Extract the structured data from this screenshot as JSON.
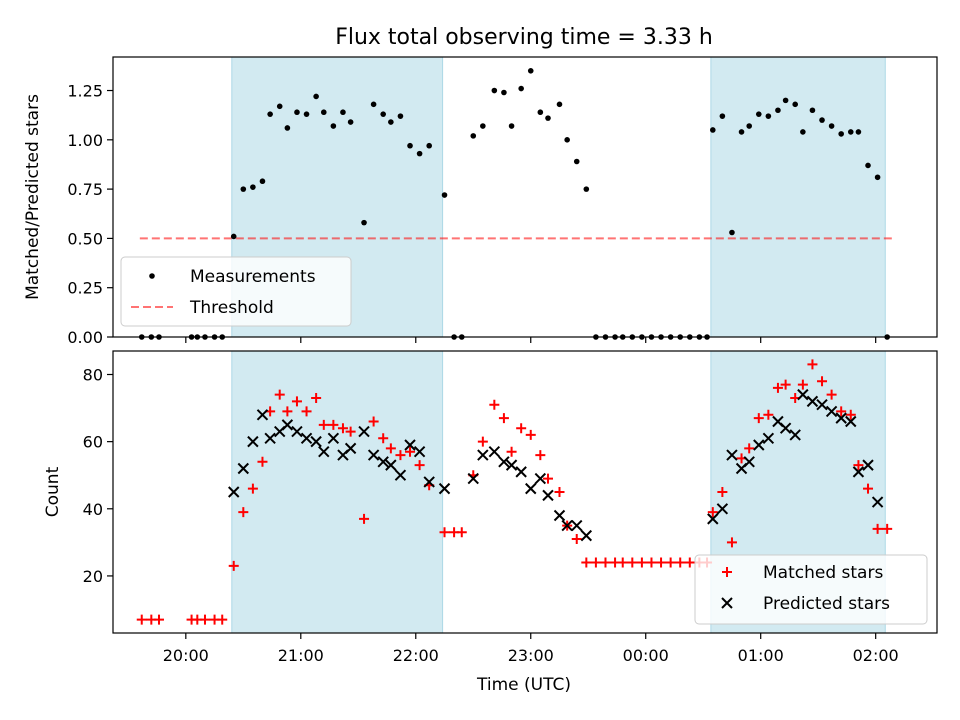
{
  "title": "Flux total observing time = 3.33 h",
  "colors": {
    "shade": "#add8e6",
    "threshold": "#ff0000",
    "matched": "#ff0000",
    "predicted": "#000000",
    "measurement": "#000000"
  },
  "chart_data": [
    {
      "type": "scatter",
      "title": "Flux total observing time = 3.33 h",
      "ylabel": "Matched/Predicted stars",
      "xlabel": "",
      "xlim": [
        "19:22",
        "02:32"
      ],
      "ylim": [
        0,
        1.42
      ],
      "yticks": [
        0.0,
        0.25,
        0.5,
        0.75,
        1.0,
        1.25
      ],
      "ytick_labels": [
        "0.00",
        "0.25",
        "0.50",
        "0.75",
        "1.00",
        "1.25"
      ],
      "shaded_intervals": [
        [
          "20:24",
          "22:14"
        ],
        [
          "00:34",
          "02:05"
        ]
      ],
      "legend": {
        "position": "lower-left",
        "entries": [
          "Measurements",
          "Threshold"
        ]
      },
      "threshold": {
        "name": "Threshold",
        "value": 0.5,
        "x_range": [
          "19:36",
          "02:10"
        ]
      },
      "series": [
        {
          "name": "Measurements",
          "points": [
            [
              "19:37",
              0
            ],
            [
              "19:42",
              0
            ],
            [
              "19:46",
              0
            ],
            [
              "20:03",
              0
            ],
            [
              "20:06",
              0
            ],
            [
              "20:10",
              0
            ],
            [
              "20:15",
              0
            ],
            [
              "20:19",
              0
            ],
            [
              "20:25",
              0.51
            ],
            [
              "20:30",
              0.75
            ],
            [
              "20:35",
              0.76
            ],
            [
              "20:40",
              0.79
            ],
            [
              "20:44",
              1.13
            ],
            [
              "20:49",
              1.17
            ],
            [
              "20:53",
              1.06
            ],
            [
              "20:58",
              1.14
            ],
            [
              "21:03",
              1.13
            ],
            [
              "21:08",
              1.22
            ],
            [
              "21:12",
              1.14
            ],
            [
              "21:17",
              1.07
            ],
            [
              "21:22",
              1.14
            ],
            [
              "21:26",
              1.09
            ],
            [
              "21:33",
              0.58
            ],
            [
              "21:38",
              1.18
            ],
            [
              "21:43",
              1.13
            ],
            [
              "21:47",
              1.09
            ],
            [
              "21:52",
              1.12
            ],
            [
              "21:57",
              0.97
            ],
            [
              "22:02",
              0.93
            ],
            [
              "22:07",
              0.97
            ],
            [
              "22:15",
              0.72
            ],
            [
              "22:20",
              0
            ],
            [
              "22:24",
              0
            ],
            [
              "22:30",
              1.02
            ],
            [
              "22:35",
              1.07
            ],
            [
              "22:41",
              1.25
            ],
            [
              "22:46",
              1.24
            ],
            [
              "22:50",
              1.07
            ],
            [
              "22:55",
              1.26
            ],
            [
              "23:00",
              1.35
            ],
            [
              "23:05",
              1.14
            ],
            [
              "23:09",
              1.11
            ],
            [
              "23:15",
              1.18
            ],
            [
              "23:19",
              1.0
            ],
            [
              "23:24",
              0.89
            ],
            [
              "23:29",
              0.75
            ],
            [
              "23:34",
              0
            ],
            [
              "23:39",
              0
            ],
            [
              "23:44",
              0
            ],
            [
              "23:48",
              0
            ],
            [
              "23:53",
              0
            ],
            [
              "23:58",
              0
            ],
            [
              "00:03",
              0
            ],
            [
              "00:08",
              0
            ],
            [
              "00:13",
              0
            ],
            [
              "00:18",
              0
            ],
            [
              "00:23",
              0
            ],
            [
              "00:28",
              0
            ],
            [
              "00:32",
              0
            ],
            [
              "00:35",
              1.05
            ],
            [
              "00:40",
              1.12
            ],
            [
              "00:45",
              0.53
            ],
            [
              "00:50",
              1.04
            ],
            [
              "00:54",
              1.07
            ],
            [
              "00:59",
              1.13
            ],
            [
              "01:04",
              1.12
            ],
            [
              "01:09",
              1.15
            ],
            [
              "01:13",
              1.2
            ],
            [
              "01:18",
              1.18
            ],
            [
              "01:22",
              1.04
            ],
            [
              "01:27",
              1.15
            ],
            [
              "01:32",
              1.1
            ],
            [
              "01:37",
              1.07
            ],
            [
              "01:42",
              1.03
            ],
            [
              "01:47",
              1.04
            ],
            [
              "01:51",
              1.04
            ],
            [
              "01:56",
              0.87
            ],
            [
              "02:01",
              0.81
            ],
            [
              "02:06",
              0
            ]
          ]
        }
      ]
    },
    {
      "type": "scatter",
      "title": "",
      "ylabel": "Count",
      "xlabel": "Time (UTC)",
      "xlim": [
        "19:22",
        "02:32"
      ],
      "ylim": [
        3,
        87
      ],
      "yticks": [
        20,
        40,
        60,
        80
      ],
      "ytick_labels": [
        "20",
        "40",
        "60",
        "80"
      ],
      "xtick_labels": [
        "20:00",
        "21:00",
        "22:00",
        "23:00",
        "00:00",
        "01:00",
        "02:00"
      ],
      "shaded_intervals": [
        [
          "20:24",
          "22:14"
        ],
        [
          "00:34",
          "02:05"
        ]
      ],
      "legend": {
        "position": "lower-right",
        "entries": [
          "Matched stars",
          "Predicted stars"
        ]
      },
      "series": [
        {
          "name": "Matched stars",
          "marker": "plus",
          "points": [
            [
              "19:37",
              7
            ],
            [
              "19:42",
              7
            ],
            [
              "19:46",
              7
            ],
            [
              "20:03",
              7
            ],
            [
              "20:06",
              7
            ],
            [
              "20:10",
              7
            ],
            [
              "20:15",
              7
            ],
            [
              "20:19",
              7
            ],
            [
              "20:25",
              23
            ],
            [
              "20:30",
              39
            ],
            [
              "20:35",
              46
            ],
            [
              "20:40",
              54
            ],
            [
              "20:44",
              69
            ],
            [
              "20:49",
              74
            ],
            [
              "20:53",
              69
            ],
            [
              "20:58",
              72
            ],
            [
              "21:03",
              69
            ],
            [
              "21:08",
              73
            ],
            [
              "21:12",
              65
            ],
            [
              "21:17",
              65
            ],
            [
              "21:22",
              64
            ],
            [
              "21:26",
              63
            ],
            [
              "21:33",
              37
            ],
            [
              "21:38",
              66
            ],
            [
              "21:43",
              61
            ],
            [
              "21:47",
              58
            ],
            [
              "21:52",
              56
            ],
            [
              "21:57",
              57
            ],
            [
              "22:02",
              53
            ],
            [
              "22:07",
              47
            ],
            [
              "22:15",
              33
            ],
            [
              "22:20",
              33
            ],
            [
              "22:24",
              33
            ],
            [
              "22:30",
              50
            ],
            [
              "22:35",
              60
            ],
            [
              "22:41",
              71
            ],
            [
              "22:46",
              67
            ],
            [
              "22:50",
              57
            ],
            [
              "22:55",
              64
            ],
            [
              "23:00",
              62
            ],
            [
              "23:05",
              56
            ],
            [
              "23:09",
              49
            ],
            [
              "23:15",
              45
            ],
            [
              "23:19",
              35
            ],
            [
              "23:24",
              31
            ],
            [
              "23:29",
              24
            ],
            [
              "23:34",
              24
            ],
            [
              "23:39",
              24
            ],
            [
              "23:44",
              24
            ],
            [
              "23:48",
              24
            ],
            [
              "23:53",
              24
            ],
            [
              "23:58",
              24
            ],
            [
              "00:03",
              24
            ],
            [
              "00:08",
              24
            ],
            [
              "00:13",
              24
            ],
            [
              "00:18",
              24
            ],
            [
              "00:23",
              24
            ],
            [
              "00:28",
              24
            ],
            [
              "00:32",
              24
            ],
            [
              "00:35",
              39
            ],
            [
              "00:40",
              45
            ],
            [
              "00:45",
              30
            ],
            [
              "00:50",
              55
            ],
            [
              "00:54",
              58
            ],
            [
              "00:59",
              67
            ],
            [
              "01:04",
              68
            ],
            [
              "01:09",
              76
            ],
            [
              "01:13",
              77
            ],
            [
              "01:18",
              73
            ],
            [
              "01:22",
              77
            ],
            [
              "01:27",
              83
            ],
            [
              "01:32",
              78
            ],
            [
              "01:37",
              74
            ],
            [
              "01:42",
              69
            ],
            [
              "01:47",
              68
            ],
            [
              "01:51",
              53
            ],
            [
              "01:56",
              46
            ],
            [
              "02:01",
              34
            ],
            [
              "02:06",
              34
            ]
          ]
        },
        {
          "name": "Predicted stars",
          "marker": "x",
          "points": [
            [
              "20:25",
              45
            ],
            [
              "20:30",
              52
            ],
            [
              "20:35",
              60
            ],
            [
              "20:40",
              68
            ],
            [
              "20:44",
              61
            ],
            [
              "20:49",
              63
            ],
            [
              "20:53",
              65
            ],
            [
              "20:58",
              63
            ],
            [
              "21:03",
              61
            ],
            [
              "21:08",
              60
            ],
            [
              "21:12",
              57
            ],
            [
              "21:17",
              61
            ],
            [
              "21:22",
              56
            ],
            [
              "21:26",
              58
            ],
            [
              "21:33",
              63
            ],
            [
              "21:38",
              56
            ],
            [
              "21:43",
              54
            ],
            [
              "21:47",
              53
            ],
            [
              "21:52",
              50
            ],
            [
              "21:57",
              59
            ],
            [
              "22:02",
              57
            ],
            [
              "22:07",
              48
            ],
            [
              "22:15",
              46
            ],
            [
              "22:30",
              49
            ],
            [
              "22:35",
              56
            ],
            [
              "22:41",
              57
            ],
            [
              "22:46",
              54
            ],
            [
              "22:50",
              53
            ],
            [
              "22:55",
              51
            ],
            [
              "23:00",
              46
            ],
            [
              "23:05",
              49
            ],
            [
              "23:09",
              44
            ],
            [
              "23:15",
              38
            ],
            [
              "23:19",
              35
            ],
            [
              "23:24",
              35
            ],
            [
              "23:29",
              32
            ],
            [
              "00:35",
              37
            ],
            [
              "00:40",
              40
            ],
            [
              "00:45",
              56
            ],
            [
              "00:50",
              52
            ],
            [
              "00:54",
              54
            ],
            [
              "00:59",
              59
            ],
            [
              "01:04",
              61
            ],
            [
              "01:09",
              66
            ],
            [
              "01:13",
              64
            ],
            [
              "01:18",
              62
            ],
            [
              "01:22",
              74
            ],
            [
              "01:27",
              72
            ],
            [
              "01:32",
              71
            ],
            [
              "01:37",
              69
            ],
            [
              "01:42",
              67
            ],
            [
              "01:47",
              66
            ],
            [
              "01:51",
              51
            ],
            [
              "01:56",
              53
            ],
            [
              "02:01",
              42
            ]
          ]
        }
      ]
    }
  ]
}
